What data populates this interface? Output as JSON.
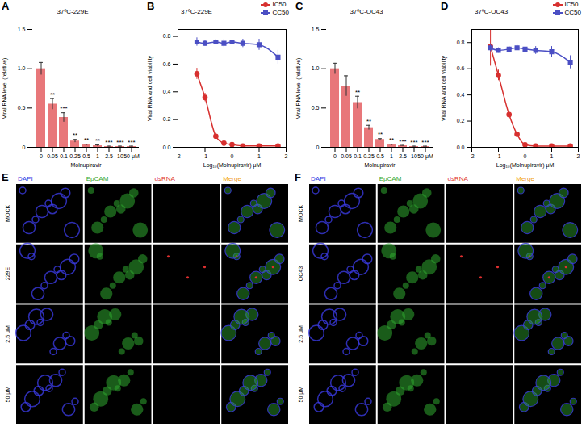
{
  "chart_data": [
    {
      "panel": "A",
      "type": "bar",
      "title": "37ºC-229E",
      "x_label": "Molnupiravir",
      "y_label": "Viral RNA level (relative)",
      "categories": [
        "0",
        "0.05",
        "0.1",
        "0.25",
        "0.5",
        "1",
        "2.5",
        "10",
        "50 μM"
      ],
      "values": [
        1.0,
        0.55,
        0.38,
        0.08,
        0.03,
        0.02,
        0.01,
        0.01,
        0.01
      ],
      "errors": [
        0.08,
        0.07,
        0.06,
        0.02,
        0.01,
        0.01,
        0.005,
        0.005,
        0.005
      ],
      "significance": [
        null,
        "**",
        "***",
        "**",
        "**",
        "**",
        "***",
        "***",
        "***"
      ],
      "color": "#e8777a",
      "ylim": [
        0,
        1.5
      ],
      "yticks": [
        0,
        0.5,
        {
          "value": 1,
          "label": "1.0"
        },
        1.5
      ]
    },
    {
      "panel": "B",
      "type": "line",
      "title": "37ºC-229E",
      "x_label": "Log₁₀(Molnupiravir) μM",
      "y_label": "Viral RNA and cell viability",
      "x": [
        -1.3,
        -1,
        -0.6,
        -0.3,
        0,
        0.4,
        1,
        1.7
      ],
      "series": [
        {
          "name": "IC50",
          "color": "#d7302f",
          "marker": "circle",
          "values": [
            0.53,
            0.36,
            0.08,
            0.03,
            0.02,
            0.01,
            0.01,
            0.01
          ],
          "errors": [
            0.04,
            0.03,
            0.02,
            0.01,
            0.01,
            0.005,
            0.005,
            0.005
          ]
        },
        {
          "name": "CC50",
          "color": "#4b4fc4",
          "marker": "square",
          "values": [
            0.76,
            0.75,
            0.76,
            0.75,
            0.76,
            0.75,
            0.74,
            0.65
          ],
          "errors": [
            0.03,
            0.02,
            0.02,
            0.03,
            0.02,
            0.03,
            0.04,
            0.05
          ]
        }
      ],
      "xlim": [
        -2,
        2
      ],
      "xticks": [
        -2,
        -1,
        0,
        1,
        2
      ],
      "ylim": [
        0,
        0.85
      ],
      "yticks": [
        {
          "value": 0,
          "label": "0.0"
        },
        0.2,
        0.4,
        0.6,
        0.8
      ],
      "legend": "top-right"
    },
    {
      "panel": "C",
      "type": "bar",
      "title": "37ºC-OC43",
      "x_label": "Molnupiravir",
      "y_label": "Viral RNA level (relative)",
      "categories": [
        "0",
        "0.05",
        "0.1",
        "0.25",
        "0.5",
        "1",
        "2.5",
        "10",
        "50 μM"
      ],
      "values": [
        1.0,
        0.78,
        0.57,
        0.25,
        0.1,
        0.03,
        0.02,
        0.01,
        0.01
      ],
      "errors": [
        0.07,
        0.13,
        0.08,
        0.03,
        0.01,
        0.01,
        0.005,
        0.005,
        0.005
      ],
      "significance": [
        null,
        null,
        "**",
        "**",
        "**",
        "**",
        "***",
        "***",
        "***"
      ],
      "color": "#e8777a",
      "ylim": [
        0,
        1.5
      ],
      "yticks": [
        0,
        0.5,
        {
          "value": 1,
          "label": "1.0"
        },
        1.5
      ]
    },
    {
      "panel": "D",
      "type": "line",
      "title": "37ºC-OC43",
      "x_label": "Log₁₀(Molnupiravir) μM",
      "y_label": "Viral RNA and cell viability",
      "x": [
        -1.3,
        -1,
        -0.6,
        -0.3,
        0,
        0.4,
        1,
        1.7
      ],
      "series": [
        {
          "name": "IC50",
          "color": "#d7302f",
          "marker": "circle",
          "values": [
            0.77,
            0.55,
            0.25,
            0.1,
            0.02,
            0.01,
            0.01,
            0.01
          ],
          "errors": [
            0.15,
            0.04,
            0.02,
            0.01,
            0.01,
            0.005,
            0.005,
            0.005
          ]
        },
        {
          "name": "CC50",
          "color": "#4b4fc4",
          "marker": "square",
          "values": [
            0.76,
            0.74,
            0.75,
            0.76,
            0.75,
            0.74,
            0.73,
            0.65
          ],
          "errors": [
            0.03,
            0.02,
            0.02,
            0.02,
            0.03,
            0.03,
            0.04,
            0.05
          ]
        }
      ],
      "xlim": [
        -2,
        2
      ],
      "xticks": [
        -2,
        -1,
        0,
        1,
        2
      ],
      "ylim": [
        0,
        0.9
      ],
      "yticks": [
        {
          "value": 0,
          "label": "0.0"
        },
        0.2,
        0.4,
        0.6,
        0.8
      ],
      "legend": "top-right"
    }
  ],
  "image_panels": [
    {
      "panel": "E",
      "columns": [
        {
          "text": "DAPI",
          "color": "#3a3adf"
        },
        {
          "text": "EpCAM",
          "color": "#2fa82f"
        },
        {
          "text": "dsRNA",
          "color": "#e03030"
        },
        {
          "text": "Merge",
          "color": "#f0a020"
        }
      ],
      "rows": [
        "MOCK",
        "229E",
        "2.5 μM",
        "50 μM"
      ]
    },
    {
      "panel": "F",
      "columns": [
        {
          "text": "DAPI",
          "color": "#3a3adf"
        },
        {
          "text": "EpCAM",
          "color": "#2fa82f"
        },
        {
          "text": "dsRNA",
          "color": "#e03030"
        },
        {
          "text": "Merge",
          "color": "#f0a020"
        }
      ],
      "rows": [
        "MOCK",
        "OC43",
        "2.5 μM",
        "50 μM"
      ]
    }
  ]
}
